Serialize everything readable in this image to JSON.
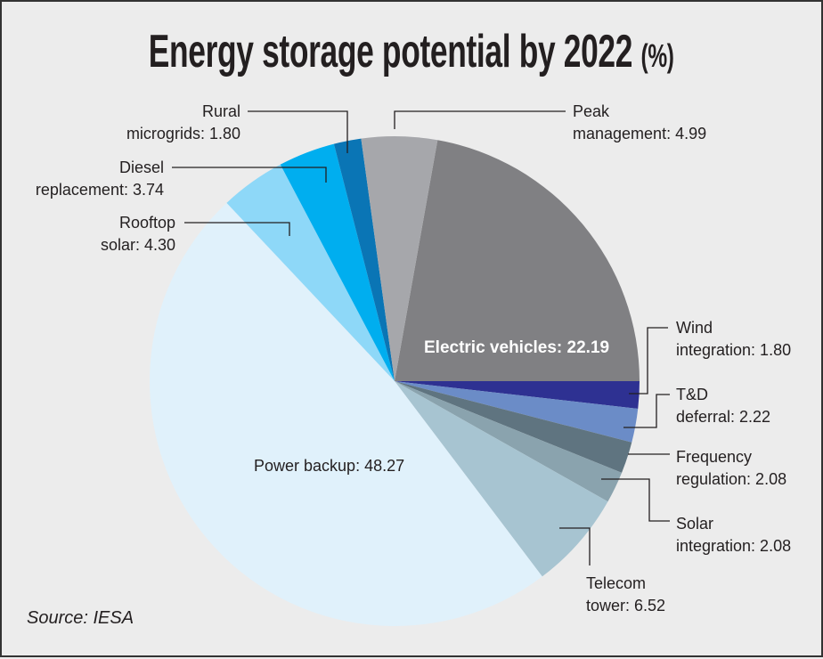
{
  "chart_data": {
    "type": "pie",
    "title": "Energy storage potential by 2022",
    "unit": "(%)",
    "source": "Source: IESA",
    "slices": [
      {
        "name": "Electric vehicles",
        "value": 22.19,
        "label": "Electric vehicles: 22.19",
        "color": "#808083"
      },
      {
        "name": "Wind integration",
        "value": 1.8,
        "label_l1": "Wind",
        "label_l2": "integration: 1.80",
        "color": "#2e3192"
      },
      {
        "name": "T&D deferral",
        "value": 2.22,
        "label_l1": "T&D",
        "label_l2": "deferral: 2.22",
        "color": "#6b8cc7"
      },
      {
        "name": "Frequency regulation",
        "value": 2.08,
        "label_l1": "Frequency",
        "label_l2": "regulation: 2.08",
        "color": "#5f7480"
      },
      {
        "name": "Solar integration",
        "value": 2.08,
        "label_l1": "Solar",
        "label_l2": "integration: 2.08",
        "color": "#8aa3ae"
      },
      {
        "name": "Telecom tower",
        "value": 6.52,
        "label_l1": "Telecom",
        "label_l2": "tower: 6.52",
        "color": "#a7c4d1"
      },
      {
        "name": "Power backup",
        "value": 48.27,
        "label": "Power backup: 48.27",
        "color": "#e0f1fb"
      },
      {
        "name": "Rooftop solar",
        "value": 4.3,
        "label_l1": "Rooftop",
        "label_l2": "solar: 4.30",
        "color": "#8ed8f8"
      },
      {
        "name": "Diesel replacement",
        "value": 3.74,
        "label_l1": "Diesel",
        "label_l2": "replacement: 3.74",
        "color": "#00aeef"
      },
      {
        "name": "Rural microgrids",
        "value": 1.8,
        "label_l1": "Rural",
        "label_l2": "microgrids: 1.80",
        "color": "#0a75b5"
      },
      {
        "name": "Peak management",
        "value": 4.99,
        "label_l1": "Peak",
        "label_l2": "management: 4.99",
        "color": "#a6a7ab"
      }
    ]
  }
}
